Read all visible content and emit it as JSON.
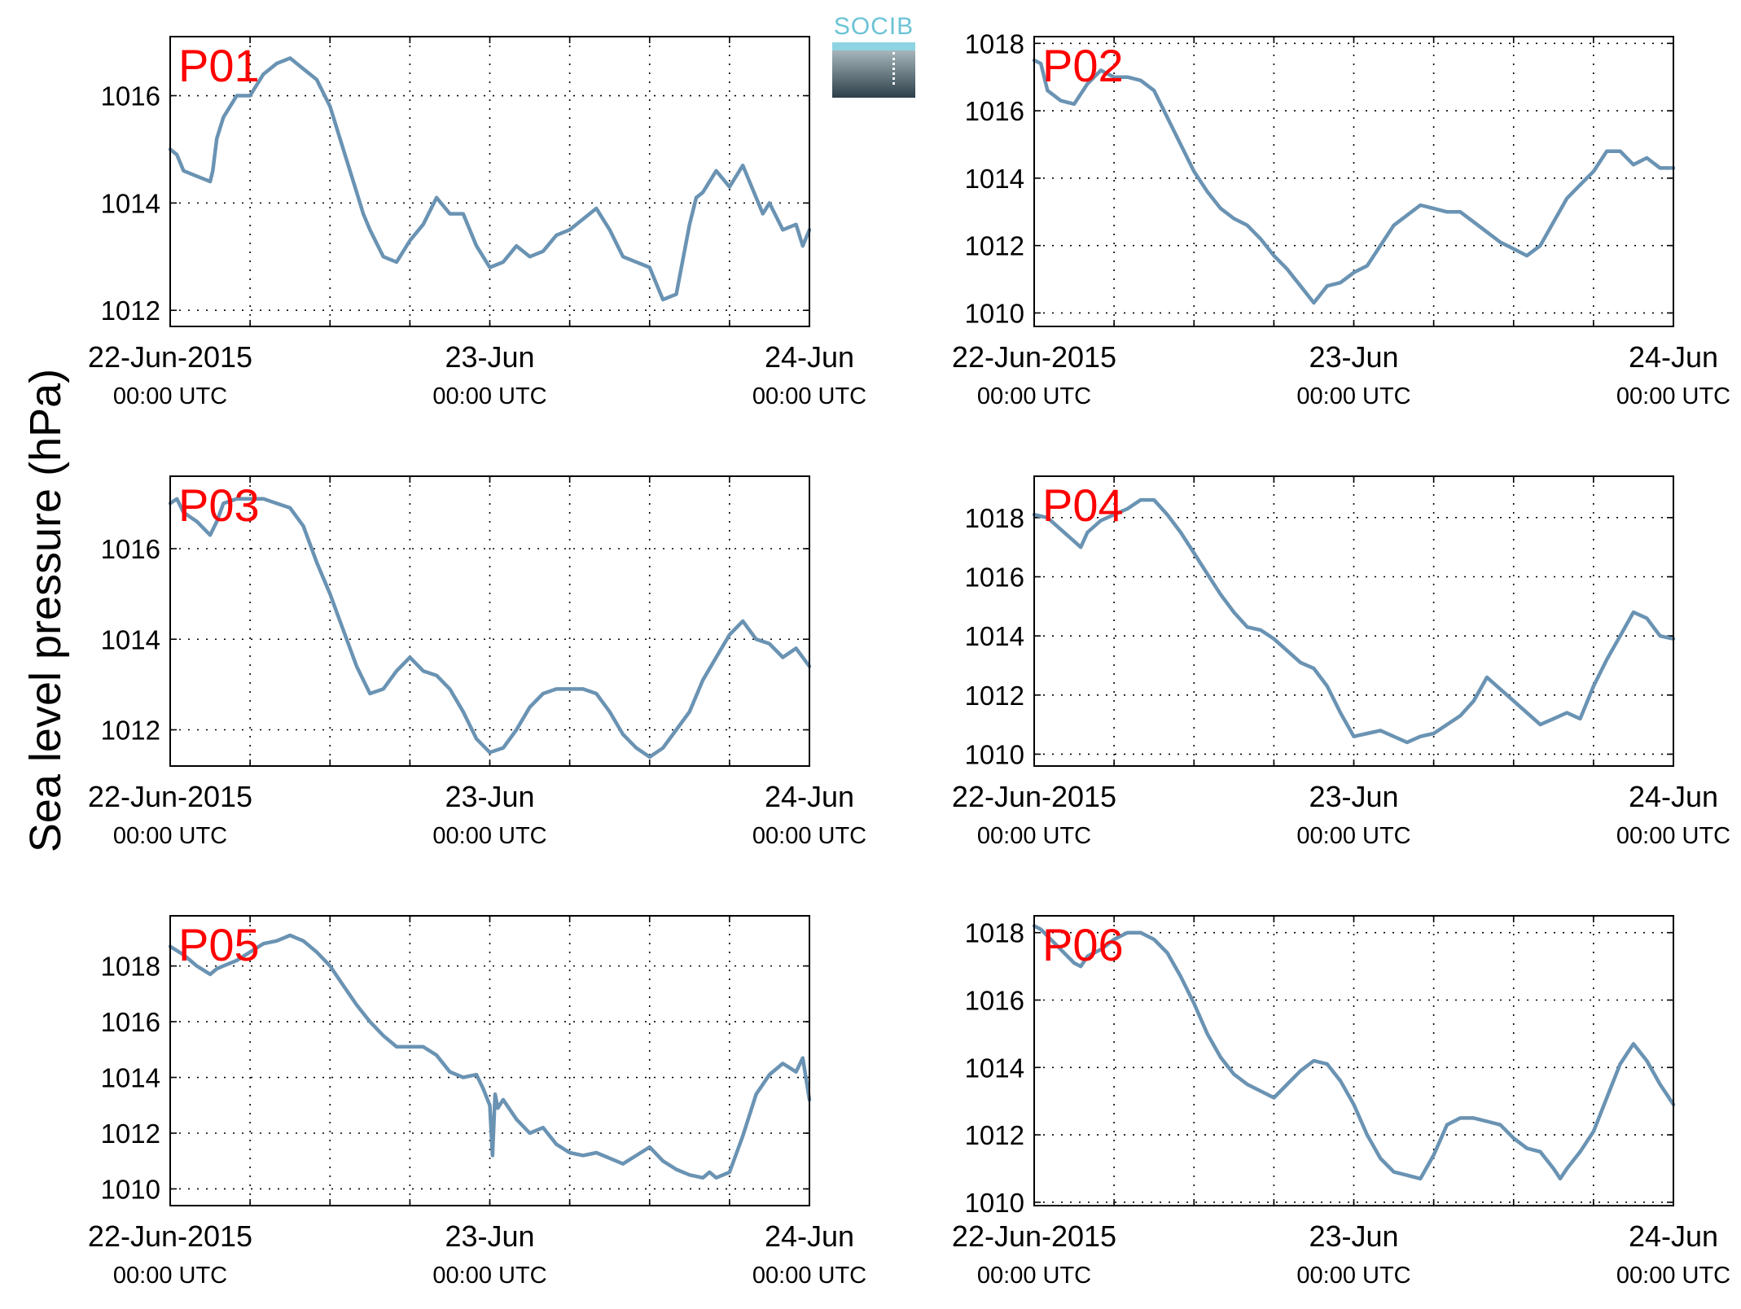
{
  "figure": {
    "ylabel": "Sea level pressure (hPa)",
    "logo_text": "SOCIB",
    "line_color": "#6a93b3",
    "label_color": "#ff0000"
  },
  "chart_data": [
    {
      "type": "line",
      "title": "P01",
      "x_ticks": [
        {
          "date": "22-Jun-2015",
          "time": "00:00 UTC"
        },
        {
          "date": "23-Jun",
          "time": "00:00 UTC"
        },
        {
          "date": "24-Jun",
          "time": "00:00 UTC"
        }
      ],
      "yticks": [
        1012,
        1014,
        1016
      ],
      "ylim": [
        1011.7,
        1017.1
      ],
      "xlim_hours": [
        0,
        48
      ],
      "grid": true,
      "series": [
        {
          "x": [
            0,
            0.5,
            1,
            2,
            3,
            3.2,
            3.5,
            4,
            4.5,
            5,
            6,
            7,
            8,
            9,
            10,
            11,
            12,
            13,
            14,
            14.5,
            15,
            16,
            17,
            18,
            19,
            20,
            21,
            22,
            23,
            24,
            25,
            26,
            27,
            28,
            29,
            30,
            31,
            32,
            33,
            34,
            35,
            36,
            36.5,
            37,
            38,
            39,
            39.5,
            40,
            41,
            42,
            43,
            44,
            44.5,
            45,
            46,
            47,
            47.5,
            48
          ],
          "y": [
            1015.0,
            1014.9,
            1014.6,
            1014.5,
            1014.4,
            1014.6,
            1015.2,
            1015.6,
            1015.8,
            1016.0,
            1016.0,
            1016.4,
            1016.6,
            1016.7,
            1016.5,
            1016.3,
            1015.8,
            1015.0,
            1014.2,
            1013.8,
            1013.5,
            1013.0,
            1012.9,
            1013.3,
            1013.6,
            1014.1,
            1013.8,
            1013.8,
            1013.2,
            1012.8,
            1012.9,
            1013.2,
            1013.0,
            1013.1,
            1013.4,
            1013.5,
            1013.7,
            1013.9,
            1013.5,
            1013.0,
            1012.9,
            1012.8,
            1012.5,
            1012.2,
            1012.3,
            1013.6,
            1014.1,
            1014.2,
            1014.6,
            1014.3,
            1014.7,
            1014.1,
            1013.8,
            1014.0,
            1013.5,
            1013.6,
            1013.2,
            1013.5
          ]
        }
      ]
    },
    {
      "type": "line",
      "title": "P02",
      "x_ticks": [
        {
          "date": "22-Jun-2015",
          "time": "00:00 UTC"
        },
        {
          "date": "23-Jun",
          "time": "00:00 UTC"
        },
        {
          "date": "24-Jun",
          "time": "00:00 UTC"
        }
      ],
      "yticks": [
        1010,
        1012,
        1014,
        1016,
        1018
      ],
      "ylim": [
        1009.6,
        1018.2
      ],
      "xlim_hours": [
        0,
        48
      ],
      "grid": true,
      "series": [
        {
          "x": [
            0,
            0.5,
            1,
            2,
            3,
            4,
            5,
            6,
            7,
            8,
            9,
            10,
            11,
            12,
            13,
            14,
            15,
            16,
            17,
            18,
            19,
            20,
            21,
            22,
            23,
            24,
            25,
            26,
            27,
            28,
            29,
            30,
            31,
            32,
            33,
            34,
            35,
            36,
            37,
            38,
            39,
            40,
            41,
            42,
            43,
            44,
            45,
            46,
            47,
            48
          ],
          "y": [
            1017.5,
            1017.4,
            1016.6,
            1016.3,
            1016.2,
            1016.8,
            1017.2,
            1017.0,
            1017.0,
            1016.9,
            1016.6,
            1015.8,
            1015.0,
            1014.2,
            1013.6,
            1013.1,
            1012.8,
            1012.6,
            1012.2,
            1011.7,
            1011.3,
            1010.8,
            1010.3,
            1010.8,
            1010.9,
            1011.2,
            1011.4,
            1012.0,
            1012.6,
            1012.9,
            1013.2,
            1013.1,
            1013.0,
            1013.0,
            1012.7,
            1012.4,
            1012.1,
            1011.9,
            1011.7,
            1012.0,
            1012.7,
            1013.4,
            1013.8,
            1014.2,
            1014.8,
            1014.8,
            1014.4,
            1014.6,
            1014.3,
            1014.3
          ]
        }
      ]
    },
    {
      "type": "line",
      "title": "P03",
      "x_ticks": [
        {
          "date": "22-Jun-2015",
          "time": "00:00 UTC"
        },
        {
          "date": "23-Jun",
          "time": "00:00 UTC"
        },
        {
          "date": "24-Jun",
          "time": "00:00 UTC"
        }
      ],
      "yticks": [
        1012,
        1014,
        1016
      ],
      "ylim": [
        1011.2,
        1017.6
      ],
      "xlim_hours": [
        0,
        48
      ],
      "grid": true,
      "series": [
        {
          "x": [
            0,
            0.5,
            1,
            2,
            3,
            3.5,
            4,
            5,
            6,
            7,
            8,
            9,
            10,
            11,
            12,
            13,
            14,
            15,
            16,
            17,
            18,
            19,
            20,
            21,
            22,
            23,
            24,
            25,
            26,
            27,
            28,
            29,
            30,
            31,
            32,
            33,
            34,
            35,
            36,
            37,
            38,
            39,
            40,
            41,
            42,
            43,
            44,
            45,
            46,
            47,
            48
          ],
          "y": [
            1017.0,
            1017.1,
            1016.8,
            1016.6,
            1016.3,
            1016.6,
            1017.0,
            1017.1,
            1017.1,
            1017.1,
            1017.0,
            1016.9,
            1016.5,
            1015.7,
            1015.0,
            1014.2,
            1013.4,
            1012.8,
            1012.9,
            1013.3,
            1013.6,
            1013.3,
            1013.2,
            1012.9,
            1012.4,
            1011.8,
            1011.5,
            1011.6,
            1012.0,
            1012.5,
            1012.8,
            1012.9,
            1012.9,
            1012.9,
            1012.8,
            1012.4,
            1011.9,
            1011.6,
            1011.4,
            1011.6,
            1012.0,
            1012.4,
            1013.1,
            1013.6,
            1014.1,
            1014.4,
            1014.0,
            1013.9,
            1013.6,
            1013.8,
            1013.4
          ]
        }
      ]
    },
    {
      "type": "line",
      "title": "P04",
      "x_ticks": [
        {
          "date": "22-Jun-2015",
          "time": "00:00 UTC"
        },
        {
          "date": "23-Jun",
          "time": "00:00 UTC"
        },
        {
          "date": "24-Jun",
          "time": "00:00 UTC"
        }
      ],
      "yticks": [
        1010,
        1012,
        1014,
        1016,
        1018
      ],
      "ylim": [
        1009.6,
        1019.4
      ],
      "xlim_hours": [
        0,
        48
      ],
      "grid": true,
      "series": [
        {
          "x": [
            0,
            1,
            2,
            3,
            3.5,
            4,
            5,
            6,
            7,
            8,
            9,
            10,
            11,
            12,
            13,
            14,
            15,
            16,
            17,
            18,
            19,
            20,
            21,
            22,
            23,
            24,
            25,
            26,
            27,
            28,
            29,
            30,
            31,
            32,
            33,
            34,
            35,
            36,
            37,
            38,
            39,
            40,
            41,
            42,
            43,
            44,
            45,
            46,
            47,
            48
          ],
          "y": [
            1018.1,
            1018.0,
            1017.6,
            1017.2,
            1017.0,
            1017.5,
            1017.9,
            1018.1,
            1018.3,
            1018.6,
            1018.6,
            1018.1,
            1017.5,
            1016.8,
            1016.1,
            1015.4,
            1014.8,
            1014.3,
            1014.2,
            1013.9,
            1013.5,
            1013.1,
            1012.9,
            1012.3,
            1011.4,
            1010.6,
            1010.7,
            1010.8,
            1010.6,
            1010.4,
            1010.6,
            1010.7,
            1011.0,
            1011.3,
            1011.8,
            1012.6,
            1012.2,
            1011.8,
            1011.4,
            1011.0,
            1011.2,
            1011.4,
            1011.2,
            1012.3,
            1013.2,
            1014.0,
            1014.8,
            1014.6,
            1014.0,
            1013.9
          ]
        }
      ]
    },
    {
      "type": "line",
      "title": "P05",
      "x_ticks": [
        {
          "date": "22-Jun-2015",
          "time": "00:00 UTC"
        },
        {
          "date": "23-Jun",
          "time": "00:00 UTC"
        },
        {
          "date": "24-Jun",
          "time": "00:00 UTC"
        }
      ],
      "yticks": [
        1010,
        1012,
        1014,
        1016,
        1018
      ],
      "ylim": [
        1009.4,
        1019.8
      ],
      "xlim_hours": [
        0,
        48
      ],
      "grid": true,
      "series": [
        {
          "x": [
            0,
            1,
            2,
            3,
            3.5,
            4,
            5,
            6,
            7,
            8,
            9,
            9.5,
            10,
            11,
            12,
            13,
            14,
            15,
            16,
            17,
            18,
            19,
            20,
            21,
            22,
            23,
            23.5,
            24,
            24.2,
            24.4,
            24.6,
            25,
            26,
            27,
            28,
            29,
            30,
            31,
            32,
            33,
            34,
            35,
            36,
            37,
            38,
            39,
            40,
            40.5,
            41,
            42,
            43,
            44,
            45,
            46,
            47,
            47.5,
            48
          ],
          "y": [
            1018.7,
            1018.4,
            1018.0,
            1017.7,
            1017.9,
            1018.0,
            1018.2,
            1018.5,
            1018.8,
            1018.9,
            1019.1,
            1019.0,
            1018.9,
            1018.5,
            1018.0,
            1017.3,
            1016.6,
            1016.0,
            1015.5,
            1015.1,
            1015.1,
            1015.1,
            1014.8,
            1014.2,
            1014.0,
            1014.1,
            1013.6,
            1013.0,
            1011.2,
            1013.4,
            1012.9,
            1013.2,
            1012.5,
            1012.0,
            1012.2,
            1011.6,
            1011.3,
            1011.2,
            1011.3,
            1011.1,
            1010.9,
            1011.2,
            1011.5,
            1011.0,
            1010.7,
            1010.5,
            1010.4,
            1010.6,
            1010.4,
            1010.6,
            1011.9,
            1013.4,
            1014.1,
            1014.5,
            1014.2,
            1014.7,
            1013.2
          ]
        }
      ]
    },
    {
      "type": "line",
      "title": "P06",
      "x_ticks": [
        {
          "date": "22-Jun-2015",
          "time": "00:00 UTC"
        },
        {
          "date": "23-Jun",
          "time": "00:00 UTC"
        },
        {
          "date": "24-Jun",
          "time": "00:00 UTC"
        }
      ],
      "yticks": [
        1010,
        1012,
        1014,
        1016,
        1018
      ],
      "ylim": [
        1009.9,
        1018.5
      ],
      "xlim_hours": [
        0,
        48
      ],
      "grid": true,
      "series": [
        {
          "x": [
            0,
            0.5,
            1,
            2,
            3,
            3.5,
            4,
            5,
            6,
            7,
            8,
            9,
            10,
            11,
            12,
            13,
            14,
            15,
            16,
            17,
            18,
            19,
            20,
            21,
            22,
            23,
            24,
            25,
            26,
            27,
            28,
            29,
            30,
            31,
            32,
            33,
            34,
            35,
            36,
            37,
            38,
            39,
            39.5,
            40,
            41,
            42,
            43,
            44,
            45,
            46,
            47,
            48
          ],
          "y": [
            1018.2,
            1018.1,
            1017.9,
            1017.5,
            1017.1,
            1017.0,
            1017.3,
            1017.5,
            1017.8,
            1018.0,
            1018.0,
            1017.8,
            1017.4,
            1016.7,
            1015.9,
            1015.0,
            1014.3,
            1013.8,
            1013.5,
            1013.3,
            1013.1,
            1013.5,
            1013.9,
            1014.2,
            1014.1,
            1013.6,
            1012.9,
            1012.0,
            1011.3,
            1010.9,
            1010.8,
            1010.7,
            1011.4,
            1012.3,
            1012.5,
            1012.5,
            1012.4,
            1012.3,
            1011.9,
            1011.6,
            1011.5,
            1011.0,
            1010.7,
            1011.0,
            1011.5,
            1012.1,
            1013.1,
            1014.1,
            1014.7,
            1014.2,
            1013.5,
            1012.9
          ]
        }
      ]
    }
  ]
}
